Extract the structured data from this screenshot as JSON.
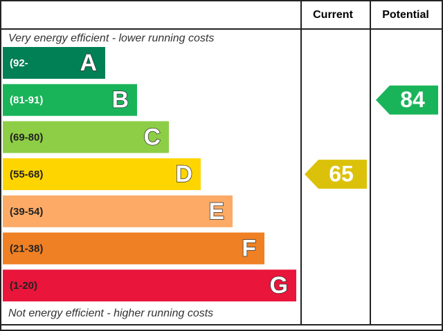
{
  "headers": {
    "current": "Current",
    "potential": "Potential"
  },
  "top_note": "Very energy efficient - lower running costs",
  "bottom_note": "Not energy efficient - higher running costs",
  "bands": [
    {
      "range": "(92-",
      "letter": "A",
      "color": "#008054"
    },
    {
      "range": "(81-91)",
      "letter": "B",
      "color": "#19b459"
    },
    {
      "range": "(69-80)",
      "letter": "C",
      "color": "#8dce46"
    },
    {
      "range": "(55-68)",
      "letter": "D",
      "color": "#ffd500"
    },
    {
      "range": "(39-54)",
      "letter": "E",
      "color": "#fcaa65"
    },
    {
      "range": "(21-38)",
      "letter": "F",
      "color": "#ef8023"
    },
    {
      "range": "(1-20)",
      "letter": "G",
      "color": "#e9153b"
    }
  ],
  "current": {
    "value": 65,
    "color": "#dcc10a"
  },
  "potential": {
    "value": 84,
    "color": "#19b459"
  }
}
